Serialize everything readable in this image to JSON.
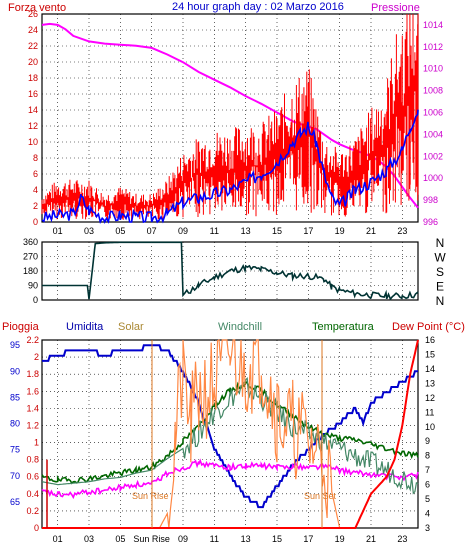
{
  "chart_data": [
    {
      "type": "line",
      "title": "24 hour graph day : 02 Marzo 2016",
      "left_label": "Forza vento",
      "right_label": "Pressione",
      "x_ticks": [
        "01",
        "03",
        "05",
        "07",
        "09",
        "11",
        "13",
        "15",
        "17",
        "19",
        "21",
        "23"
      ],
      "x_range": [
        0,
        24
      ],
      "left_ylim": [
        0,
        26
      ],
      "left_ticks": [
        "0",
        "2",
        "4",
        "6",
        "8",
        "10",
        "12",
        "14",
        "16",
        "18",
        "20",
        "22",
        "24",
        "26"
      ],
      "right_ylim": [
        996,
        1015
      ],
      "right_ticks": [
        "996",
        "998",
        "1000",
        "1002",
        "1004",
        "1006",
        "1008",
        "1010",
        "1012",
        "1014"
      ],
      "grid": true,
      "series": [
        {
          "color": "#ff00ff",
          "axis": "right",
          "kind": "line",
          "x": [
            0,
            0.5,
            1,
            1.5,
            2,
            3,
            4,
            5,
            6,
            7,
            8,
            9,
            10,
            11,
            12,
            13,
            14,
            15,
            16,
            17,
            17.5,
            18,
            18.5,
            19,
            19.5,
            20,
            20.5,
            21,
            21.5,
            22,
            22.5,
            23,
            23.5,
            24
          ],
          "y": [
            1014,
            1014.1,
            1014,
            1013.6,
            1013,
            1012.5,
            1012.3,
            1012.2,
            1012.1,
            1011.9,
            1011.3,
            1010.6,
            1009.7,
            1009,
            1008.3,
            1007.5,
            1006.8,
            1006,
            1005.2,
            1004.7,
            1004.5,
            1004,
            1003.5,
            1003.1,
            1002.8,
            1002.5,
            1002.3,
            1002,
            1001.6,
            1001,
            1000.2,
            999.2,
            998.2,
            997.3
          ]
        },
        {
          "color": "#ff0000",
          "axis": "left",
          "kind": "gust",
          "x": [
            0,
            1,
            2,
            3,
            4,
            5,
            6,
            7,
            8,
            9,
            10,
            11,
            12,
            13,
            14,
            15,
            16,
            17,
            18,
            19,
            20,
            21,
            22,
            22.5,
            23,
            23.5,
            24
          ],
          "y": [
            2,
            3,
            3,
            3,
            2,
            2.5,
            2,
            2,
            3,
            5,
            6,
            6.5,
            6.5,
            7,
            7,
            8,
            10,
            11,
            6,
            5,
            6,
            8,
            10,
            13,
            14,
            16,
            17
          ]
        },
        {
          "color": "#0000ff",
          "axis": "left",
          "kind": "line",
          "x": [
            0,
            1,
            2,
            2.5,
            3,
            4,
            5,
            6,
            7,
            8,
            9,
            10,
            11,
            12,
            13,
            14,
            15,
            16,
            16.5,
            17,
            17.5,
            18,
            18.5,
            19,
            19.5,
            20,
            21,
            22,
            23,
            23.5,
            24
          ],
          "y": [
            0.5,
            0.8,
            1,
            3,
            1.5,
            0.5,
            0.8,
            0.6,
            0.5,
            1,
            2.5,
            3,
            3.5,
            4,
            5,
            6,
            7.5,
            10,
            11,
            12,
            10,
            6,
            3,
            2,
            3,
            4,
            5,
            6.5,
            9,
            12,
            14
          ]
        }
      ]
    },
    {
      "type": "line",
      "title": "",
      "x_range": [
        0,
        24
      ],
      "ylim": [
        0,
        360
      ],
      "y_ticks": [
        "0",
        "90",
        "180",
        "270",
        "360"
      ],
      "right_labels": [
        "N",
        "W",
        "S",
        "E",
        "N"
      ],
      "grid": true,
      "series": [
        {
          "color": "#003333",
          "x": [
            0,
            1,
            2,
            2.9,
            3,
            3.4,
            4,
            5,
            6,
            7,
            8,
            8.9,
            9,
            9.5,
            10,
            11,
            12,
            13,
            14,
            15,
            16,
            17,
            18,
            18.5,
            19,
            20,
            21,
            22,
            23,
            24
          ],
          "y": [
            90,
            90,
            90,
            90,
            5,
            350,
            355,
            358,
            358,
            358,
            358,
            358,
            30,
            60,
            90,
            140,
            180,
            200,
            190,
            170,
            150,
            150,
            130,
            80,
            60,
            40,
            30,
            25,
            25,
            35
          ]
        }
      ]
    },
    {
      "type": "line",
      "title": "",
      "legend": [
        "Pioggia",
        "Umidita",
        "Solar",
        "Windchill",
        "Temperatura",
        "Dew Point (°C)"
      ],
      "annotations": [
        "Sun Rise",
        "Sun Set"
      ],
      "x_tick_labels": [
        "01",
        "03",
        "05",
        "Sun Rise",
        "09",
        "11",
        "13",
        "15",
        "17",
        "19",
        "21",
        "23"
      ],
      "x_range": [
        0,
        24
      ],
      "humidity_ylim": [
        60,
        96
      ],
      "humidity_ticks": [
        "65",
        "70",
        "75",
        "80",
        "85",
        "90",
        "95"
      ],
      "rain_ylim": [
        0,
        2.2
      ],
      "rain_ticks": [
        "0",
        "0.2",
        "0.4",
        "0.6",
        "0.8",
        "1",
        "1.2",
        "1.4",
        "1.6",
        "1.8",
        "2",
        "2.2"
      ],
      "temp_ylim": [
        3,
        16
      ],
      "temp_ticks": [
        "3",
        "4",
        "5",
        "6",
        "7",
        "8",
        "9",
        "10",
        "11",
        "12",
        "13",
        "14",
        "15",
        "16"
      ],
      "grid": true,
      "series": [
        {
          "color": "#0000cc",
          "axis": "humidity",
          "x": [
            0,
            1,
            2,
            3,
            4,
            5,
            6,
            7,
            8,
            9,
            10,
            11,
            12,
            13,
            14,
            15,
            16,
            17,
            18,
            19,
            20,
            20.5,
            21,
            22,
            23,
            24
          ],
          "y": [
            92,
            93,
            94,
            94,
            93,
            94,
            94,
            95,
            94,
            90,
            84,
            75,
            70,
            66,
            64,
            68,
            72,
            75,
            78,
            80,
            83,
            80,
            84,
            86,
            88,
            90
          ]
        },
        {
          "color": "#ff00ff",
          "axis": "temp",
          "x": [
            0,
            1,
            2,
            3,
            4,
            5,
            6,
            7,
            8,
            9,
            10,
            11,
            12,
            13,
            14,
            15,
            16,
            17,
            18,
            19,
            20,
            21,
            22,
            23,
            24
          ],
          "y": [
            5.5,
            5.3,
            5.3,
            5.5,
            5.6,
            5.8,
            6,
            6,
            6.8,
            7.2,
            7.5,
            7.3,
            7.2,
            7.3,
            7.3,
            7.2,
            7.3,
            7.2,
            7.3,
            7,
            6.8,
            6.7,
            6.6,
            6.5,
            6.7
          ]
        },
        {
          "color": "#006600",
          "axis": "temp",
          "x": [
            0,
            1,
            2,
            3,
            4,
            5,
            6,
            7,
            8,
            9,
            10,
            11,
            12,
            13,
            14,
            15,
            16,
            17,
            18,
            19,
            20,
            21,
            22,
            23,
            24
          ],
          "y": [
            6.5,
            6.3,
            6.3,
            6.4,
            6.6,
            6.8,
            7,
            7.2,
            8,
            9,
            10,
            11.5,
            12.5,
            13,
            12.5,
            11.5,
            10.8,
            10,
            9.5,
            9.2,
            9.1,
            8.8,
            8.5,
            8.2,
            8
          ]
        },
        {
          "color": "#448866",
          "axis": "temp",
          "x": [
            0,
            1,
            2,
            3,
            4,
            5,
            6,
            7,
            8,
            9,
            10,
            11,
            12,
            13,
            14,
            15,
            16,
            17,
            18,
            19,
            20,
            21,
            22,
            23,
            24
          ],
          "y": [
            6.2,
            6,
            6.1,
            6.2,
            6.4,
            6.5,
            6.8,
            7,
            7.8,
            8.5,
            9.5,
            11,
            12,
            12.7,
            12,
            11,
            10,
            9.5,
            9,
            8.5,
            8,
            7.5,
            7,
            6.5,
            6
          ]
        },
        {
          "color": "#ff8844",
          "axis": "temp",
          "x": [
            0,
            5,
            6,
            7.5,
            8,
            8.5,
            9,
            9.5,
            10,
            11,
            12,
            13,
            14,
            14.5,
            15,
            16,
            17,
            18,
            19
          ],
          "y": [
            3,
            3,
            3,
            3,
            4,
            9,
            14,
            10,
            12,
            13,
            15,
            14,
            15,
            13,
            11,
            10,
            9,
            8,
            3
          ]
        },
        {
          "color": "#ff0000",
          "axis": "rain",
          "x": [
            0,
            18,
            19,
            20,
            20.5,
            21,
            22,
            22.5,
            23,
            23.5,
            24
          ],
          "y": [
            0,
            0,
            0,
            0,
            0.2,
            0.4,
            0.6,
            0.8,
            1.2,
            1.8,
            2.2
          ]
        }
      ]
    }
  ]
}
